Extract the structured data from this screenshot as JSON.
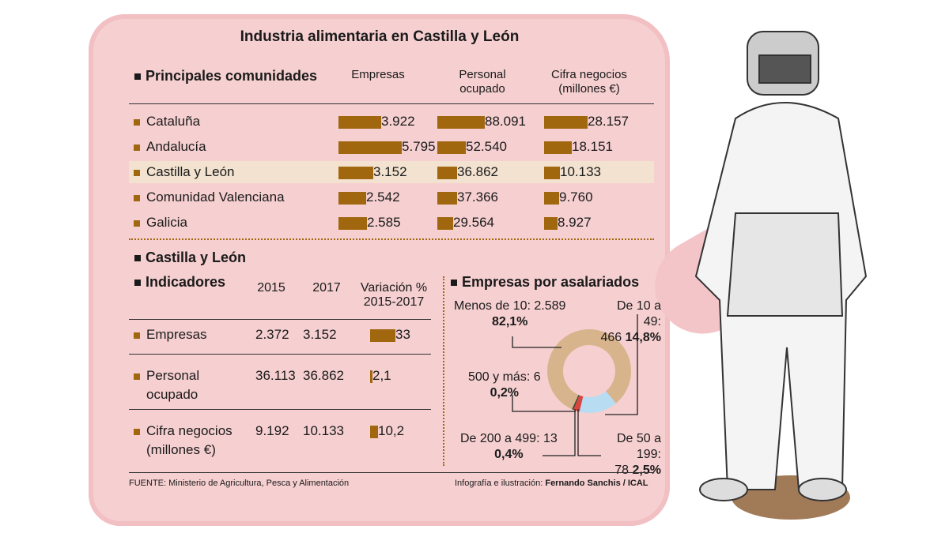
{
  "title": "Industria alimentaria en Castilla y León",
  "top": {
    "heading": "Principales comunidades",
    "columns": [
      "Empresas",
      "Personal ocupado",
      "Cifra negocios (millones €)"
    ],
    "col_lines": [
      [
        "Empresas",
        ""
      ],
      [
        "Personal",
        "ocupado"
      ],
      [
        "Cifra negocios",
        "(millones €)"
      ]
    ],
    "rows": [
      {
        "name": "Cataluña",
        "values": [
          "3.922",
          "88.091",
          "28.157"
        ],
        "highlight": false
      },
      {
        "name": "Andalucía",
        "values": [
          "5.795",
          "52.540",
          "18.151"
        ],
        "highlight": false
      },
      {
        "name": "Castilla y León",
        "values": [
          "3.152",
          "36.862",
          "10.133"
        ],
        "highlight": true
      },
      {
        "name": "Comunidad Valenciana",
        "values": [
          "2.542",
          "37.366",
          "9.760"
        ],
        "highlight": false
      },
      {
        "name": "Galicia",
        "values": [
          "2.585",
          "29.564",
          "8.927"
        ],
        "highlight": false
      }
    ]
  },
  "region_heading": "Castilla y León",
  "indicators": {
    "heading": "Indicadores",
    "col_2015": "2015",
    "col_2017": "2017",
    "col_var": "Variación %",
    "col_var2": "2015-2017",
    "rows": [
      {
        "l1": "Empresas",
        "l2": "",
        "v2015": "2.372",
        "v2017": "3.152",
        "var": "33"
      },
      {
        "l1": "Personal",
        "l2": "ocupado",
        "v2015": "36.113",
        "v2017": "36.862",
        "var": "2,1"
      },
      {
        "l1": "Cifra negocios",
        "l2": "(millones €)",
        "v2015": "9.192",
        "v2017": "10.133",
        "var": "10,2"
      }
    ]
  },
  "donut": {
    "heading": "Empresas por asalariados",
    "labels": {
      "a1": "Menos de 10: 2.589",
      "a2": "82,1%",
      "b1": "De 10 a 49:",
      "b2": "466 ",
      "b3": "14,8%",
      "c1": "500 y más: 6",
      "c2": "0,2%",
      "d1": "De 200 a 499: 13",
      "d2": "0,4%",
      "e1": "De 50 a 199:",
      "e2": "78 ",
      "e3": "2,5%"
    }
  },
  "chart_data": [
    {
      "type": "bar",
      "title": "Principales comunidades",
      "categories": [
        "Cataluña",
        "Andalucía",
        "Castilla y León",
        "Comunidad Valenciana",
        "Galicia"
      ],
      "series": [
        {
          "name": "Empresas",
          "values": [
            3922,
            5795,
            3152,
            2542,
            2585
          ]
        },
        {
          "name": "Personal ocupado",
          "values": [
            88091,
            52540,
            36862,
            37366,
            29564
          ]
        },
        {
          "name": "Cifra negocios (millones €)",
          "values": [
            28157,
            18151,
            10133,
            9760,
            8927
          ]
        }
      ]
    },
    {
      "type": "bar",
      "title": "Indicadores",
      "categories": [
        "Empresas",
        "Personal ocupado",
        "Cifra negocios (millones €)"
      ],
      "series": [
        {
          "name": "Variación % 2015-2017",
          "values": [
            33,
            2.1,
            10.2
          ]
        }
      ]
    },
    {
      "type": "pie",
      "title": "Empresas por asalariados",
      "categories": [
        "Menos de 10",
        "De 10 a 49",
        "De 50 a 199",
        "De 200 a 499",
        "500 y más"
      ],
      "values": [
        2589,
        466,
        78,
        13,
        6
      ],
      "percent": [
        82.1,
        14.8,
        2.5,
        0.4,
        0.2
      ],
      "colors": [
        "#d7b48c",
        "#b8dcf2",
        "#d9453f",
        "#333333",
        "#3a8a3a"
      ]
    }
  ],
  "footer": {
    "source": "FUENTE: Ministerio de Agricultura, Pesca y Alimentación",
    "credit_prefix": "Infografía e ilustración: ",
    "credit": "Fernando Sanchis / ICAL"
  },
  "colors": {
    "background": "#f6cfd0",
    "bar": "#a0670f",
    "highlight": "#f2e2cf"
  }
}
